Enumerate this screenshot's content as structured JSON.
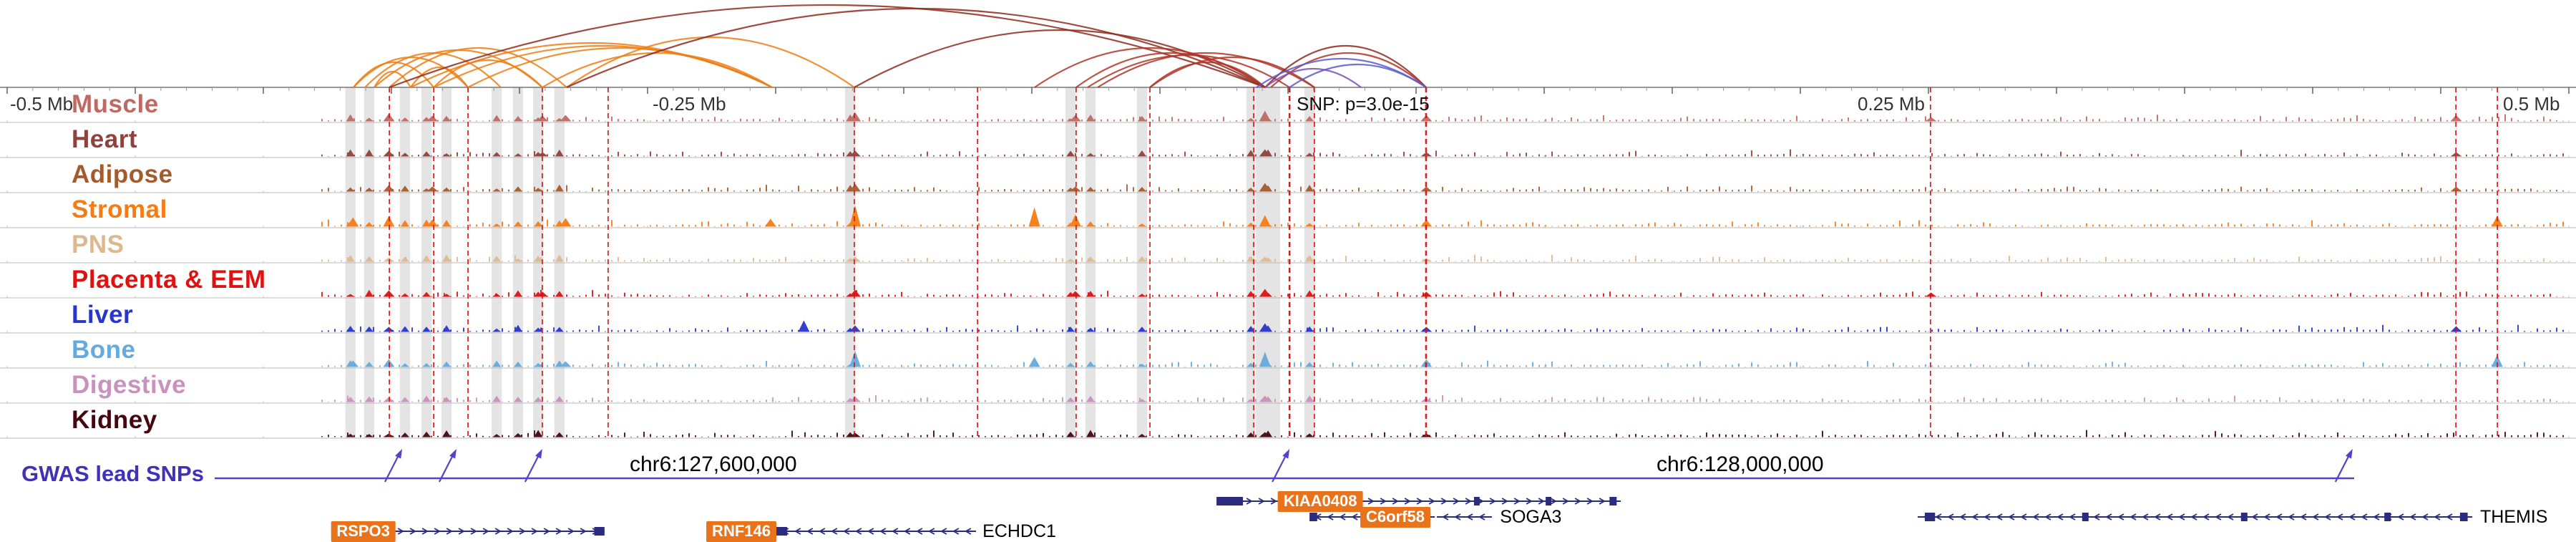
{
  "chart_data": {
    "type": "genome-browser-tracks",
    "axis": {
      "range_mb": [
        -0.5,
        0.5
      ],
      "tick_interval_mb": 0.05,
      "labels": [
        {
          "text": "-0.5 Mb",
          "mb": -0.5,
          "align": "left"
        },
        {
          "text": "-0.25 Mb",
          "mb": -0.25,
          "align": "left"
        },
        {
          "text": "SNP: p=3.0e-15",
          "mb": 0,
          "align": "left"
        },
        {
          "text": "0.25 Mb",
          "mb": 0.25,
          "align": "right"
        },
        {
          "text": "0.5 Mb",
          "mb": 0.5,
          "align": "right"
        }
      ]
    },
    "snp": {
      "label": "SNP: p=3.0e-15",
      "p_value": "3.0e-15",
      "mb": 0
    },
    "coordinate_labels": [
      {
        "text": "chr6:127,600,000",
        "mb": -0.2235
      },
      {
        "text": "chr6:128,000,000",
        "mb": 0.1774
      }
    ],
    "tracks": [
      {
        "name": "Muscle",
        "color": "#BE6A62",
        "peaks": [
          [
            -0.351,
            11
          ],
          [
            -0.334,
            8
          ],
          [
            -0.291,
            8
          ],
          [
            -0.282,
            9
          ],
          [
            -0.169,
            13
          ],
          [
            -0.083,
            9
          ],
          [
            -0.009,
            15
          ],
          [
            0.054,
            9
          ],
          [
            0.251,
            6
          ],
          [
            0.456,
            9
          ]
        ]
      },
      {
        "name": "Heart",
        "color": "#8F423C",
        "peaks": [
          [
            -0.351,
            8
          ],
          [
            -0.291,
            6
          ],
          [
            -0.169,
            8
          ],
          [
            -0.009,
            10
          ],
          [
            0.054,
            6
          ],
          [
            0.456,
            6
          ]
        ]
      },
      {
        "name": "Adipose",
        "color": "#A35B2E",
        "peaks": [
          [
            -0.351,
            9
          ],
          [
            -0.334,
            7
          ],
          [
            -0.169,
            11
          ],
          [
            -0.083,
            7
          ],
          [
            -0.009,
            12
          ],
          [
            0.054,
            7
          ],
          [
            0.456,
            7
          ]
        ]
      },
      {
        "name": "Stromal",
        "color": "#F57C14",
        "peaks": [
          [
            -0.365,
            13
          ],
          [
            -0.351,
            15
          ],
          [
            -0.334,
            10
          ],
          [
            -0.282,
            12
          ],
          [
            -0.202,
            11
          ],
          [
            -0.169,
            30
          ],
          [
            -0.099,
            27
          ],
          [
            -0.083,
            17
          ],
          [
            -0.009,
            16
          ],
          [
            0.054,
            10
          ],
          [
            0.472,
            15
          ]
        ]
      },
      {
        "name": "PNS",
        "color": "#DDB88F",
        "peaks": [
          [
            -0.351,
            6
          ],
          [
            -0.169,
            7
          ],
          [
            -0.009,
            7
          ],
          [
            0.054,
            5
          ]
        ]
      },
      {
        "name": "Placenta & EEM",
        "color": "#E01111",
        "peaks": [
          [
            -0.351,
            9
          ],
          [
            -0.291,
            7
          ],
          [
            -0.169,
            10
          ],
          [
            -0.083,
            8
          ],
          [
            -0.009,
            11
          ],
          [
            0.054,
            7
          ],
          [
            0.251,
            6
          ]
        ]
      },
      {
        "name": "Liver",
        "color": "#2936C8",
        "peaks": [
          [
            -0.351,
            7
          ],
          [
            -0.189,
            16
          ],
          [
            -0.169,
            9
          ],
          [
            -0.009,
            12
          ],
          [
            0.054,
            7
          ],
          [
            0.456,
            8
          ]
        ]
      },
      {
        "name": "Bone",
        "color": "#64AADC",
        "peaks": [
          [
            -0.365,
            9
          ],
          [
            -0.351,
            11
          ],
          [
            -0.282,
            8
          ],
          [
            -0.169,
            23
          ],
          [
            -0.099,
            14
          ],
          [
            -0.009,
            21
          ],
          [
            0.054,
            11
          ],
          [
            0.472,
            17
          ]
        ]
      },
      {
        "name": "Digestive",
        "color": "#C891BE",
        "peaks": [
          [
            -0.351,
            7
          ],
          [
            -0.169,
            8
          ],
          [
            -0.009,
            9
          ],
          [
            0.054,
            6
          ]
        ]
      },
      {
        "name": "Kidney",
        "color": "#45060F",
        "peaks": [
          [
            -0.351,
            5
          ],
          [
            -0.169,
            6
          ],
          [
            -0.009,
            7
          ],
          [
            0.054,
            5
          ]
        ]
      }
    ],
    "highlight_bands": [
      [
        -0.366,
        0.004
      ],
      [
        -0.3587,
        0.004
      ],
      [
        -0.3447,
        0.004
      ],
      [
        -0.3363,
        0.004
      ],
      [
        -0.3285,
        0.004
      ],
      [
        -0.3089,
        0.004
      ],
      [
        -0.3006,
        0.004
      ],
      [
        -0.2927,
        0.004
      ],
      [
        -0.2844,
        0.004
      ],
      [
        -0.1709,
        0.004
      ],
      [
        -0.0849,
        0.004
      ],
      [
        -0.0771,
        0.004
      ],
      [
        -0.057,
        0.004
      ],
      [
        -0.0145,
        0.0035
      ],
      [
        -0.0078,
        0.0095
      ],
      [
        0.0084,
        0.004
      ]
    ],
    "red_dashed_lines_mb": [
      -0.3508,
      -0.3335,
      -0.3201,
      -0.2911,
      -0.2654,
      -0.1693,
      -0.1212,
      -0.0827,
      -0.0539,
      -0.0134,
      0.0006,
      0.0103,
      0.0539,
      0.2508,
      0.4559,
      0.4721
    ],
    "emphasized_lines_mb": [
      0.0006,
      0.0539
    ],
    "arc_colors": {
      "orange": "#ED7D14",
      "red": "#B03528",
      "maroon": "#8E2C1E",
      "blue": "#5A5ACF",
      "purple": "#7A4FB8"
    },
    "arcs": [
      {
        "x1": -0.3648,
        "x2": -0.3335,
        "h": 35,
        "color": "orange"
      },
      {
        "x1": -0.3648,
        "x2": -0.3201,
        "h": 42,
        "color": "orange"
      },
      {
        "x1": -0.3603,
        "x2": -0.3073,
        "h": 48,
        "color": "orange"
      },
      {
        "x1": -0.3567,
        "x2": -0.2911,
        "h": 52,
        "color": "orange"
      },
      {
        "x1": -0.3508,
        "x2": -0.2816,
        "h": 55,
        "color": "orange"
      },
      {
        "x1": -0.3567,
        "x2": -0.3425,
        "h": 22,
        "color": "orange"
      },
      {
        "x1": -0.3425,
        "x2": -0.3201,
        "h": 28,
        "color": "orange"
      },
      {
        "x1": -0.3335,
        "x2": -0.2911,
        "h": 38,
        "color": "orange"
      },
      {
        "x1": -0.3425,
        "x2": -0.2014,
        "h": 62,
        "color": "orange"
      },
      {
        "x1": -0.3335,
        "x2": -0.2014,
        "h": 58,
        "color": "orange"
      },
      {
        "x1": -0.3201,
        "x2": -0.2014,
        "h": 55,
        "color": "orange"
      },
      {
        "x1": -0.2911,
        "x2": -0.2014,
        "h": 48,
        "color": "orange"
      },
      {
        "x1": -0.2816,
        "x2": -0.1693,
        "h": 70,
        "color": "orange"
      },
      {
        "x1": -0.3508,
        "x2": -0.0089,
        "h": 115,
        "color": "maroon"
      },
      {
        "x1": -0.2816,
        "x2": -0.0089,
        "h": 110,
        "color": "maroon"
      },
      {
        "x1": -0.1693,
        "x2": -0.0089,
        "h": 80,
        "color": "maroon"
      },
      {
        "x1": -0.0989,
        "x2": -0.0089,
        "h": 55,
        "color": "red"
      },
      {
        "x1": -0.0827,
        "x2": -0.0089,
        "h": 48,
        "color": "red"
      },
      {
        "x1": -0.0782,
        "x2": 0.0006,
        "h": 45,
        "color": "red"
      },
      {
        "x1": -0.0743,
        "x2": 0.0103,
        "h": 48,
        "color": "red"
      },
      {
        "x1": -0.0539,
        "x2": -0.0089,
        "h": 35,
        "color": "red"
      },
      {
        "x1": -0.0539,
        "x2": 0.0103,
        "h": 42,
        "color": "red"
      },
      {
        "x1": -0.0089,
        "x2": 0.0539,
        "h": 58,
        "color": "maroon"
      },
      {
        "x1": -0.0067,
        "x2": 0.0539,
        "h": 48,
        "color": "red"
      },
      {
        "x1": -0.0123,
        "x2": 0.0539,
        "h": 40,
        "color": "blue"
      },
      {
        "x1": 0.0006,
        "x2": 0.0539,
        "h": 32,
        "color": "blue"
      },
      {
        "x1": -0.0089,
        "x2": 0.0285,
        "h": 26,
        "color": "purple"
      }
    ],
    "gwas": {
      "label": "GWAS lead SNPs",
      "color": "#5244C8",
      "line_mb": [
        -0.419,
        0.4162
      ],
      "snp_mb": [
        -0.3458,
        -0.3246,
        -0.2911,
        0.0006,
        0.4156
      ]
    },
    "genes": [
      {
        "name": "RSPO3",
        "label_type": "orange",
        "label_mb": -0.361,
        "row": 3,
        "line_mb": [
          -0.3497,
          -0.2668
        ],
        "dir": "right",
        "exons": [
          [
            -0.2708,
            0.004
          ]
        ]
      },
      {
        "name": "RNF146",
        "label_type": "orange",
        "label_mb": -0.2134,
        "row": 3,
        "line_mb": [
          -0.1995,
          -0.1218
        ],
        "dir": "left",
        "exons": [
          [
            -0.2,
            0.0045
          ]
        ]
      },
      {
        "name": "ECHDC1",
        "label_type": "black",
        "label_mb": -0.1198,
        "row": 3,
        "line_mb": null,
        "dir": null,
        "exons": []
      },
      {
        "name": "KIAA0408",
        "label_type": "orange",
        "label_mb": 0.0126,
        "row": 1,
        "line_mb": [
          -0.0279,
          0.1299
        ],
        "dir": "right",
        "exons": [
          [
            -0.0279,
            0.0103
          ],
          [
            0.0726,
            0.0022
          ],
          [
            0.1006,
            0.0022
          ],
          [
            0.1255,
            0.0028
          ]
        ]
      },
      {
        "name": "C6orf58",
        "label_type": "orange",
        "label_mb": 0.0419,
        "row": 2,
        "line_mb": [
          0.0084,
          0.0573
        ],
        "dir": "left",
        "exons": [
          [
            0.0084,
            0.003
          ]
        ]
      },
      {
        "name": "SOGA3",
        "label_type": "black",
        "label_mb": 0.0822,
        "row": 2,
        "line_mb": [
          0.0581,
          0.0796
        ],
        "dir": "left",
        "exons": []
      },
      {
        "name": "THEMIS",
        "label_type": "black",
        "label_mb": 0.4648,
        "row": 2,
        "line_mb": [
          0.2458,
          0.4623
        ],
        "dir": "left",
        "exons": [
          [
            0.2486,
            0.004
          ],
          [
            0.31,
            0.0025
          ],
          [
            0.372,
            0.0025
          ],
          [
            0.428,
            0.0025
          ],
          [
            0.4575,
            0.003
          ]
        ]
      }
    ],
    "gene_color": "#2B2B80"
  }
}
